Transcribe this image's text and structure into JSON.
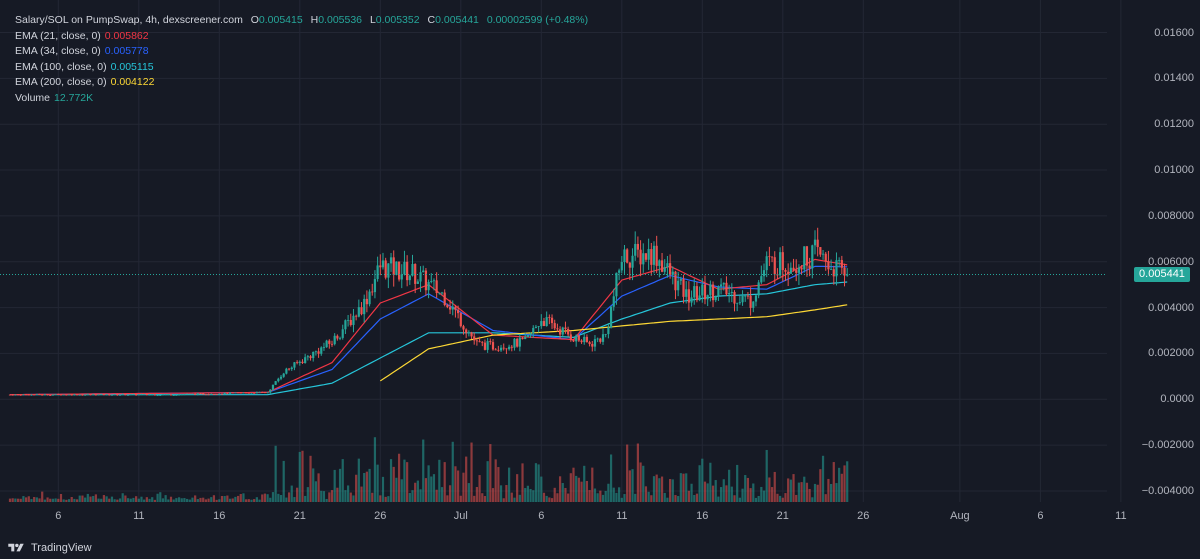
{
  "header": {
    "symbol": "Salary/SOL on PumpSwap, 4h, dexscreener.com",
    "open_key": "O",
    "open": "0.005415",
    "high_key": "H",
    "high": "0.005536",
    "low_key": "L",
    "low": "0.005352",
    "close_key": "C",
    "close": "0.005441",
    "change": "0.00002599 (+0.48%)"
  },
  "indicators": [
    {
      "label": "EMA (21, close, 0)",
      "value": "0.005862",
      "color": "#f23645"
    },
    {
      "label": "EMA (34, close, 0)",
      "value": "0.005778",
      "color": "#2962ff"
    },
    {
      "label": "EMA (100, close, 0)",
      "value": "0.005115",
      "color": "#26c6da"
    },
    {
      "label": "EMA (200, close, 0)",
      "value": "0.004122",
      "color": "#fdd835"
    }
  ],
  "volume": {
    "label": "Volume",
    "value": "12.772K",
    "color": "#26a69a"
  },
  "current_price_tag": "0.005441",
  "footer": {
    "brand": "TradingView"
  },
  "colors": {
    "background": "#161a25",
    "up": "#26a69a",
    "down": "#ef5350",
    "grid": "#232734"
  },
  "chart_data": {
    "type": "candlestick",
    "interval": "4h",
    "y_axis": {
      "ticks": [
        "0.01600",
        "0.01400",
        "0.01200",
        "0.01000",
        "0.008000",
        "0.006000",
        "0.004000",
        "0.002000",
        "0.0000",
        "−0.002000",
        "−0.004000"
      ],
      "range": [
        -0.0047,
        0.0172
      ]
    },
    "x_axis": {
      "ticks": [
        "6",
        "11",
        "16",
        "21",
        "26",
        "Jul",
        "6",
        "11",
        "16",
        "21",
        "26",
        "Aug",
        "6",
        "11"
      ],
      "range_days": [
        "Jun 3",
        "Aug 12"
      ]
    },
    "last_close": 0.005441,
    "price_anchors": {
      "dates": [
        "Jun 3",
        "Jun 13",
        "Jun 19",
        "Jun 20",
        "Jun 23",
        "Jun 25",
        "Jun 26",
        "Jun 28",
        "Jun 30",
        "Jul 2",
        "Jul 3",
        "Jul 5",
        "Jul 6",
        "Jul 8",
        "Jul 9",
        "Jul 10",
        "Jul 11",
        "Jul 13",
        "Jul 15",
        "Jul 17",
        "Jul 19",
        "Jul 20",
        "Jul 22",
        "Jul 23",
        "Jul 24",
        "Jul 25"
      ],
      "close": [
        0.0002,
        0.0002,
        0.0003,
        0.0012,
        0.0025,
        0.0042,
        0.0058,
        0.0055,
        0.0045,
        0.0024,
        0.0023,
        0.0025,
        0.0035,
        0.0027,
        0.0024,
        0.0028,
        0.0062,
        0.0064,
        0.0045,
        0.0048,
        0.0043,
        0.0059,
        0.006,
        0.0064,
        0.0058,
        0.00544
      ]
    },
    "ema_approx": {
      "dates": [
        "Jun 3",
        "Jun 19",
        "Jun 23",
        "Jun 26",
        "Jun 29",
        "Jul 3",
        "Jul 8",
        "Jul 11",
        "Jul 14",
        "Jul 17",
        "Jul 20",
        "Jul 23",
        "Jul 25"
      ],
      "ema21": [
        0.0002,
        0.0003,
        0.0016,
        0.0042,
        0.005,
        0.0028,
        0.0026,
        0.0052,
        0.0058,
        0.0048,
        0.005,
        0.0061,
        0.005862
      ],
      "ema34": [
        0.0002,
        0.0003,
        0.0013,
        0.0035,
        0.0046,
        0.003,
        0.0026,
        0.0045,
        0.0054,
        0.0049,
        0.0048,
        0.0058,
        0.005778
      ],
      "ema100": [
        0.0002,
        0.0002,
        0.0007,
        0.0018,
        0.0029,
        0.0029,
        0.0027,
        0.0035,
        0.0042,
        0.0045,
        0.0046,
        0.005,
        0.005115
      ],
      "ema200_dates": [
        "Jun 26",
        "Jun 29",
        "Jul 3",
        "Jul 8",
        "Jul 11",
        "Jul 14",
        "Jul 17",
        "Jul 20",
        "Jul 23",
        "Jul 25"
      ],
      "ema200": [
        0.0008,
        0.0022,
        0.0028,
        0.003,
        0.0032,
        0.0034,
        0.0035,
        0.0036,
        0.0039,
        0.004122
      ]
    }
  }
}
